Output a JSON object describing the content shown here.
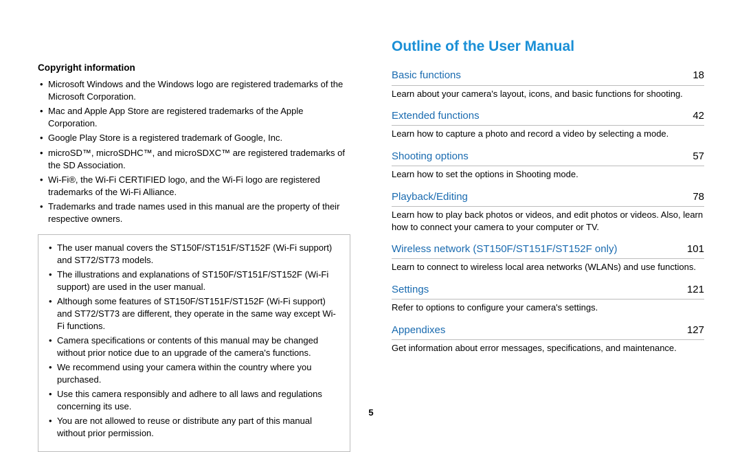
{
  "left": {
    "copyright_heading": "Copyright information",
    "copyright_items": [
      "Microsoft Windows and the Windows logo are registered trademarks of the Microsoft Corporation.",
      "Mac and Apple App Store are registered trademarks of the Apple Corporation.",
      "Google Play Store is a registered trademark of Google, Inc.",
      "microSD™, microSDHC™, and microSDXC™ are registered trademarks of the SD Association.",
      "Wi-Fi®, the Wi-Fi CERTIFIED logo, and the Wi-Fi logo are registered trademarks of the Wi-Fi Alliance.",
      "Trademarks and trade names used in this manual are the property of their respective owners."
    ],
    "note_items": [
      "The user manual covers the ST150F/ST151F/ST152F (Wi-Fi support) and ST72/ST73 models.",
      "The illustrations and explanations of ST150F/ST151F/ST152F (Wi-Fi support) are used in the user manual.",
      "Although some features of ST150F/ST151F/ST152F (Wi-Fi support) and ST72/ST73 are different, they operate in the same way except Wi-Fi functions.",
      "Camera specifications or contents of this manual may be changed without prior notice due to an upgrade of the camera's functions.",
      "We recommend using your camera within the country where you purchased.",
      "Use this camera responsibly and adhere to all laws and regulations concerning its use.",
      "You are not allowed to reuse or distribute any part of this manual without prior permission."
    ]
  },
  "right": {
    "outline_heading": "Outline of the User Manual",
    "sections": [
      {
        "title": "Basic functions",
        "page": "18",
        "desc": "Learn about your camera's layout, icons, and basic functions for shooting."
      },
      {
        "title": "Extended functions",
        "page": "42",
        "desc": "Learn how to capture a photo and record a video by selecting a mode."
      },
      {
        "title": "Shooting options",
        "page": "57",
        "desc": "Learn how to set the options in Shooting mode."
      },
      {
        "title": "Playback/Editing",
        "page": "78",
        "desc": "Learn how to play back photos or videos, and edit photos or videos. Also, learn how to connect your camera to your computer or TV."
      },
      {
        "title": "Wireless network (ST150F/ST151F/ST152F only)",
        "page": "101",
        "desc": "Learn to connect to wireless local area networks (WLANs) and use functions."
      },
      {
        "title": "Settings",
        "page": "121",
        "desc": "Refer to options to configure your camera's settings."
      },
      {
        "title": "Appendixes",
        "page": "127",
        "desc": "Get information about error messages, specifications, and maintenance."
      }
    ]
  },
  "page_number": "5",
  "colors": {
    "outline_heading": "#1a8fd6",
    "toc_title": "#1a6bb0",
    "rule": "#bcbcbc"
  }
}
